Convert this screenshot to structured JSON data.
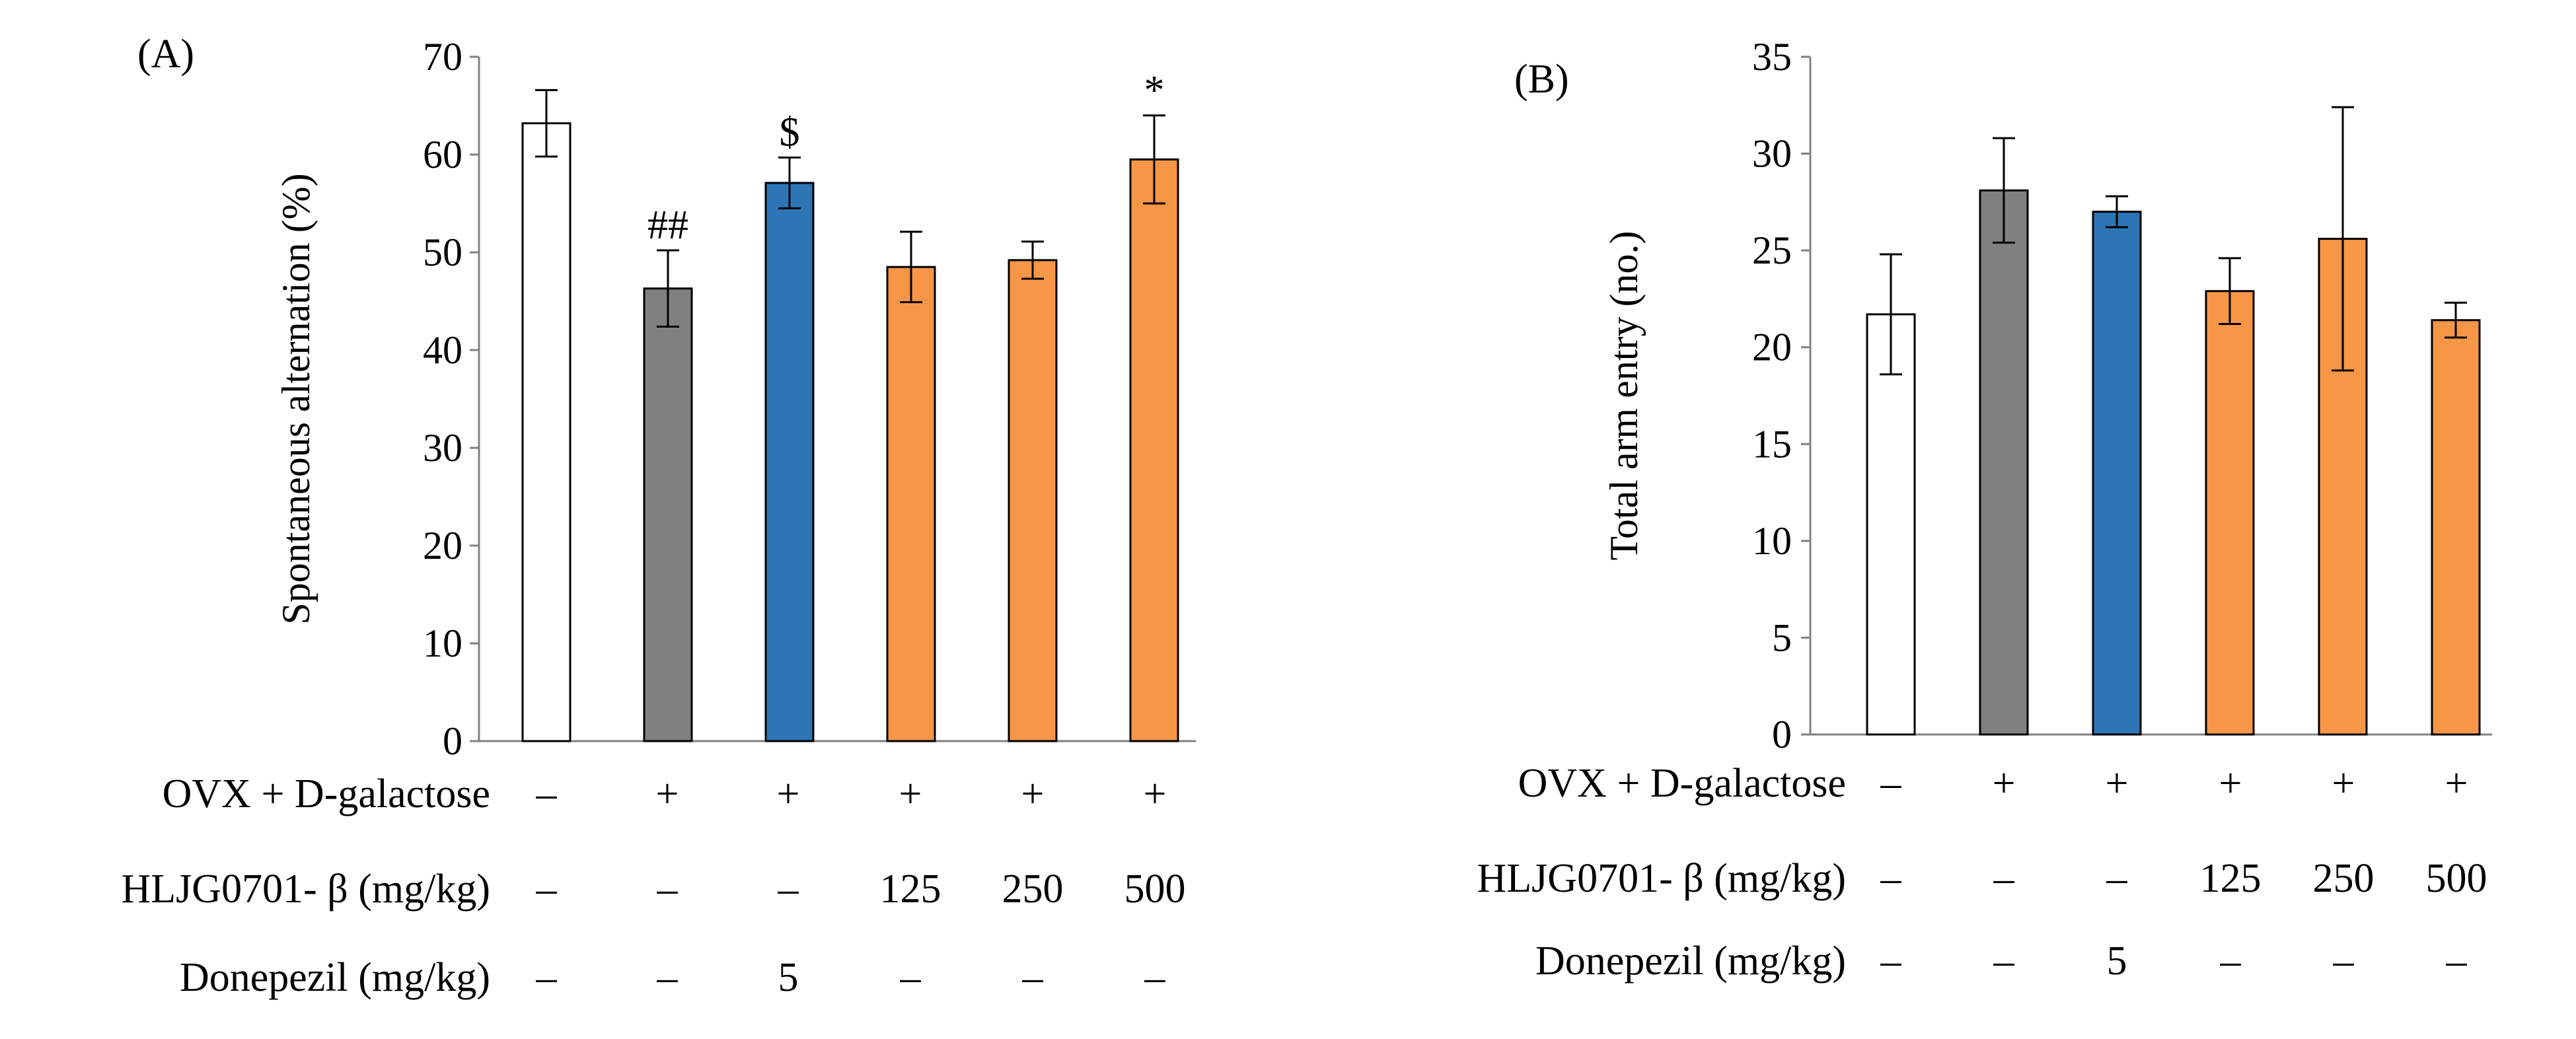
{
  "colors": {
    "sham": "#ffffff",
    "model": "#808080",
    "donepezil": "#2e75b6",
    "hljg": "#f79646",
    "outline": "#000000"
  },
  "treatment_rows": [
    {
      "label": "OVX + D-galactose",
      "values": [
        "–",
        "+",
        "+",
        "+",
        "+",
        "+"
      ]
    },
    {
      "label": "HLJG0701- β (mg/kg)",
      "values": [
        "–",
        "–",
        "–",
        "125",
        "250",
        "500"
      ]
    },
    {
      "label": "Donepezil (mg/kg)",
      "values": [
        "–",
        "–",
        "5",
        "–",
        "–",
        "–"
      ]
    }
  ],
  "chart_data": [
    {
      "type": "bar",
      "panel_label": "(A)",
      "ylabel": "Spontaneous alternation (%)",
      "xlabel": "",
      "ylim": [
        0,
        70
      ],
      "yticks": [
        "0",
        "10",
        "20",
        "30",
        "40",
        "50",
        "60",
        "70"
      ],
      "groups": [
        "sham",
        "model",
        "donepezil",
        "hljg",
        "hljg",
        "hljg"
      ],
      "values": [
        63.2,
        46.3,
        57.1,
        48.5,
        49.2,
        59.5
      ],
      "errors": [
        3.4,
        3.9,
        2.6,
        3.6,
        1.9,
        4.5
      ],
      "annotations": [
        "",
        "##",
        "$",
        "",
        "",
        "*"
      ]
    },
    {
      "type": "bar",
      "panel_label": "(B)",
      "ylabel": "Total arm entry (no.)",
      "xlabel": "",
      "ylim": [
        0,
        35
      ],
      "yticks": [
        "0",
        "5",
        "10",
        "15",
        "20",
        "25",
        "30",
        "35"
      ],
      "groups": [
        "sham",
        "model",
        "donepezil",
        "hljg",
        "hljg",
        "hljg"
      ],
      "values": [
        21.7,
        28.1,
        27.0,
        22.9,
        25.6,
        21.4
      ],
      "errors": [
        3.1,
        2.7,
        0.8,
        1.7,
        6.8,
        0.9
      ],
      "annotations": [
        "",
        "",
        "",
        "",
        "",
        ""
      ]
    }
  ]
}
